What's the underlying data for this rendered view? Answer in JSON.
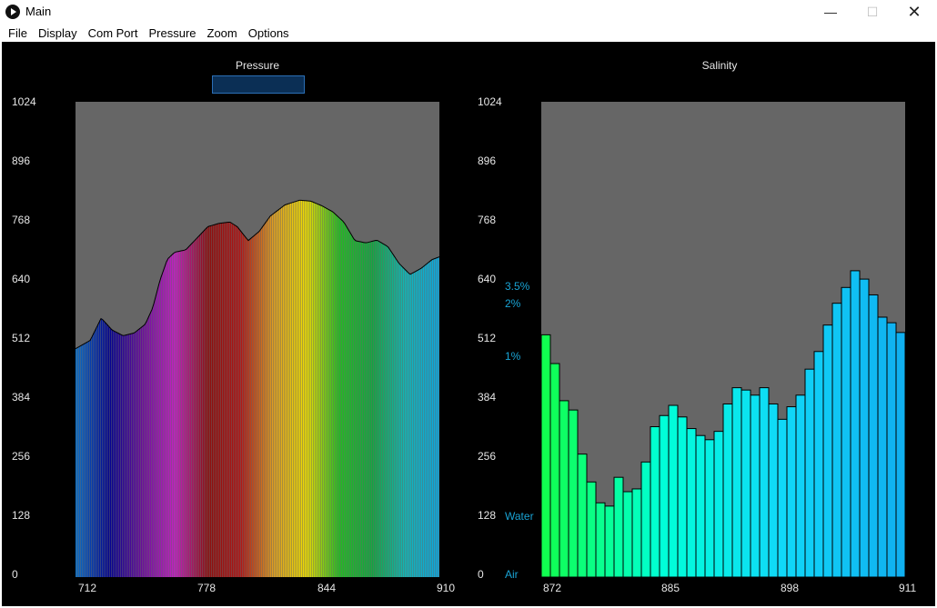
{
  "window": {
    "title": "Main",
    "min_glyph": "—",
    "max_glyph": "☐",
    "close_glyph": "✕"
  },
  "menu": {
    "items": [
      "File",
      "Display",
      "Com Port",
      "Pressure",
      "Zoom",
      "Options"
    ]
  },
  "chart_data": [
    {
      "type": "bar",
      "title": "Pressure",
      "ylim": [
        0,
        1024
      ],
      "y_ticks": [
        "1024",
        "896",
        "768",
        "640",
        "512",
        "384",
        "256",
        "128",
        "0"
      ],
      "x_ticks": [
        "712",
        "778",
        "844",
        "910"
      ],
      "x_range": [
        712,
        910
      ],
      "grid": false,
      "control_points": [
        [
          712,
          492
        ],
        [
          720,
          510
        ],
        [
          726,
          558
        ],
        [
          732,
          532
        ],
        [
          738,
          520
        ],
        [
          744,
          526
        ],
        [
          750,
          545
        ],
        [
          754,
          580
        ],
        [
          758,
          640
        ],
        [
          762,
          685
        ],
        [
          766,
          700
        ],
        [
          772,
          705
        ],
        [
          778,
          730
        ],
        [
          784,
          755
        ],
        [
          790,
          762
        ],
        [
          796,
          765
        ],
        [
          800,
          755
        ],
        [
          806,
          725
        ],
        [
          812,
          745
        ],
        [
          818,
          778
        ],
        [
          826,
          802
        ],
        [
          834,
          812
        ],
        [
          840,
          810
        ],
        [
          846,
          800
        ],
        [
          852,
          787
        ],
        [
          858,
          765
        ],
        [
          864,
          725
        ],
        [
          870,
          720
        ],
        [
          876,
          726
        ],
        [
          882,
          712
        ],
        [
          888,
          676
        ],
        [
          894,
          652
        ],
        [
          900,
          665
        ],
        [
          906,
          684
        ],
        [
          910,
          690
        ]
      ],
      "colors": [
        "#0a6fc8",
        "#000090",
        "#6a0c9c",
        "#c41ec4",
        "#8c0d0d",
        "#b01515",
        "#e0a020",
        "#f0e000",
        "#20c020",
        "#10a840",
        "#10b8b8",
        "#0aa8e0"
      ]
    },
    {
      "type": "bar",
      "title": "Salinity",
      "ylim": [
        0,
        1024
      ],
      "y_ticks": [
        "1024",
        "896",
        "768",
        "640",
        "512",
        "384",
        "256",
        "128",
        "0"
      ],
      "x_ticks": [
        "872",
        "885",
        "898",
        "911"
      ],
      "categories": [
        872,
        873,
        874,
        875,
        876,
        877,
        878,
        879,
        880,
        881,
        882,
        883,
        884,
        885,
        886,
        887,
        888,
        889,
        890,
        891,
        892,
        893,
        894,
        895,
        896,
        897,
        898,
        899,
        900,
        901,
        902,
        903,
        904,
        905,
        906,
        907,
        908,
        909,
        910,
        911
      ],
      "values": [
        522,
        460,
        380,
        360,
        265,
        205,
        160,
        153,
        215,
        184,
        190,
        248,
        324,
        348,
        370,
        345,
        320,
        305,
        296,
        314,
        373,
        408,
        403,
        392,
        408,
        373,
        340,
        367,
        392,
        448,
        486,
        543,
        590,
        624,
        660,
        642,
        608,
        560,
        548,
        527
      ],
      "annotations": [
        "3.5%",
        "2%",
        "1%",
        "Water",
        "Air"
      ],
      "annotation_values": [
        630,
        592,
        477,
        128,
        2
      ],
      "colors": [
        "#10ff50",
        "#00ffd8",
        "#10d8f8",
        "#10b0f0"
      ],
      "grid": false
    }
  ]
}
